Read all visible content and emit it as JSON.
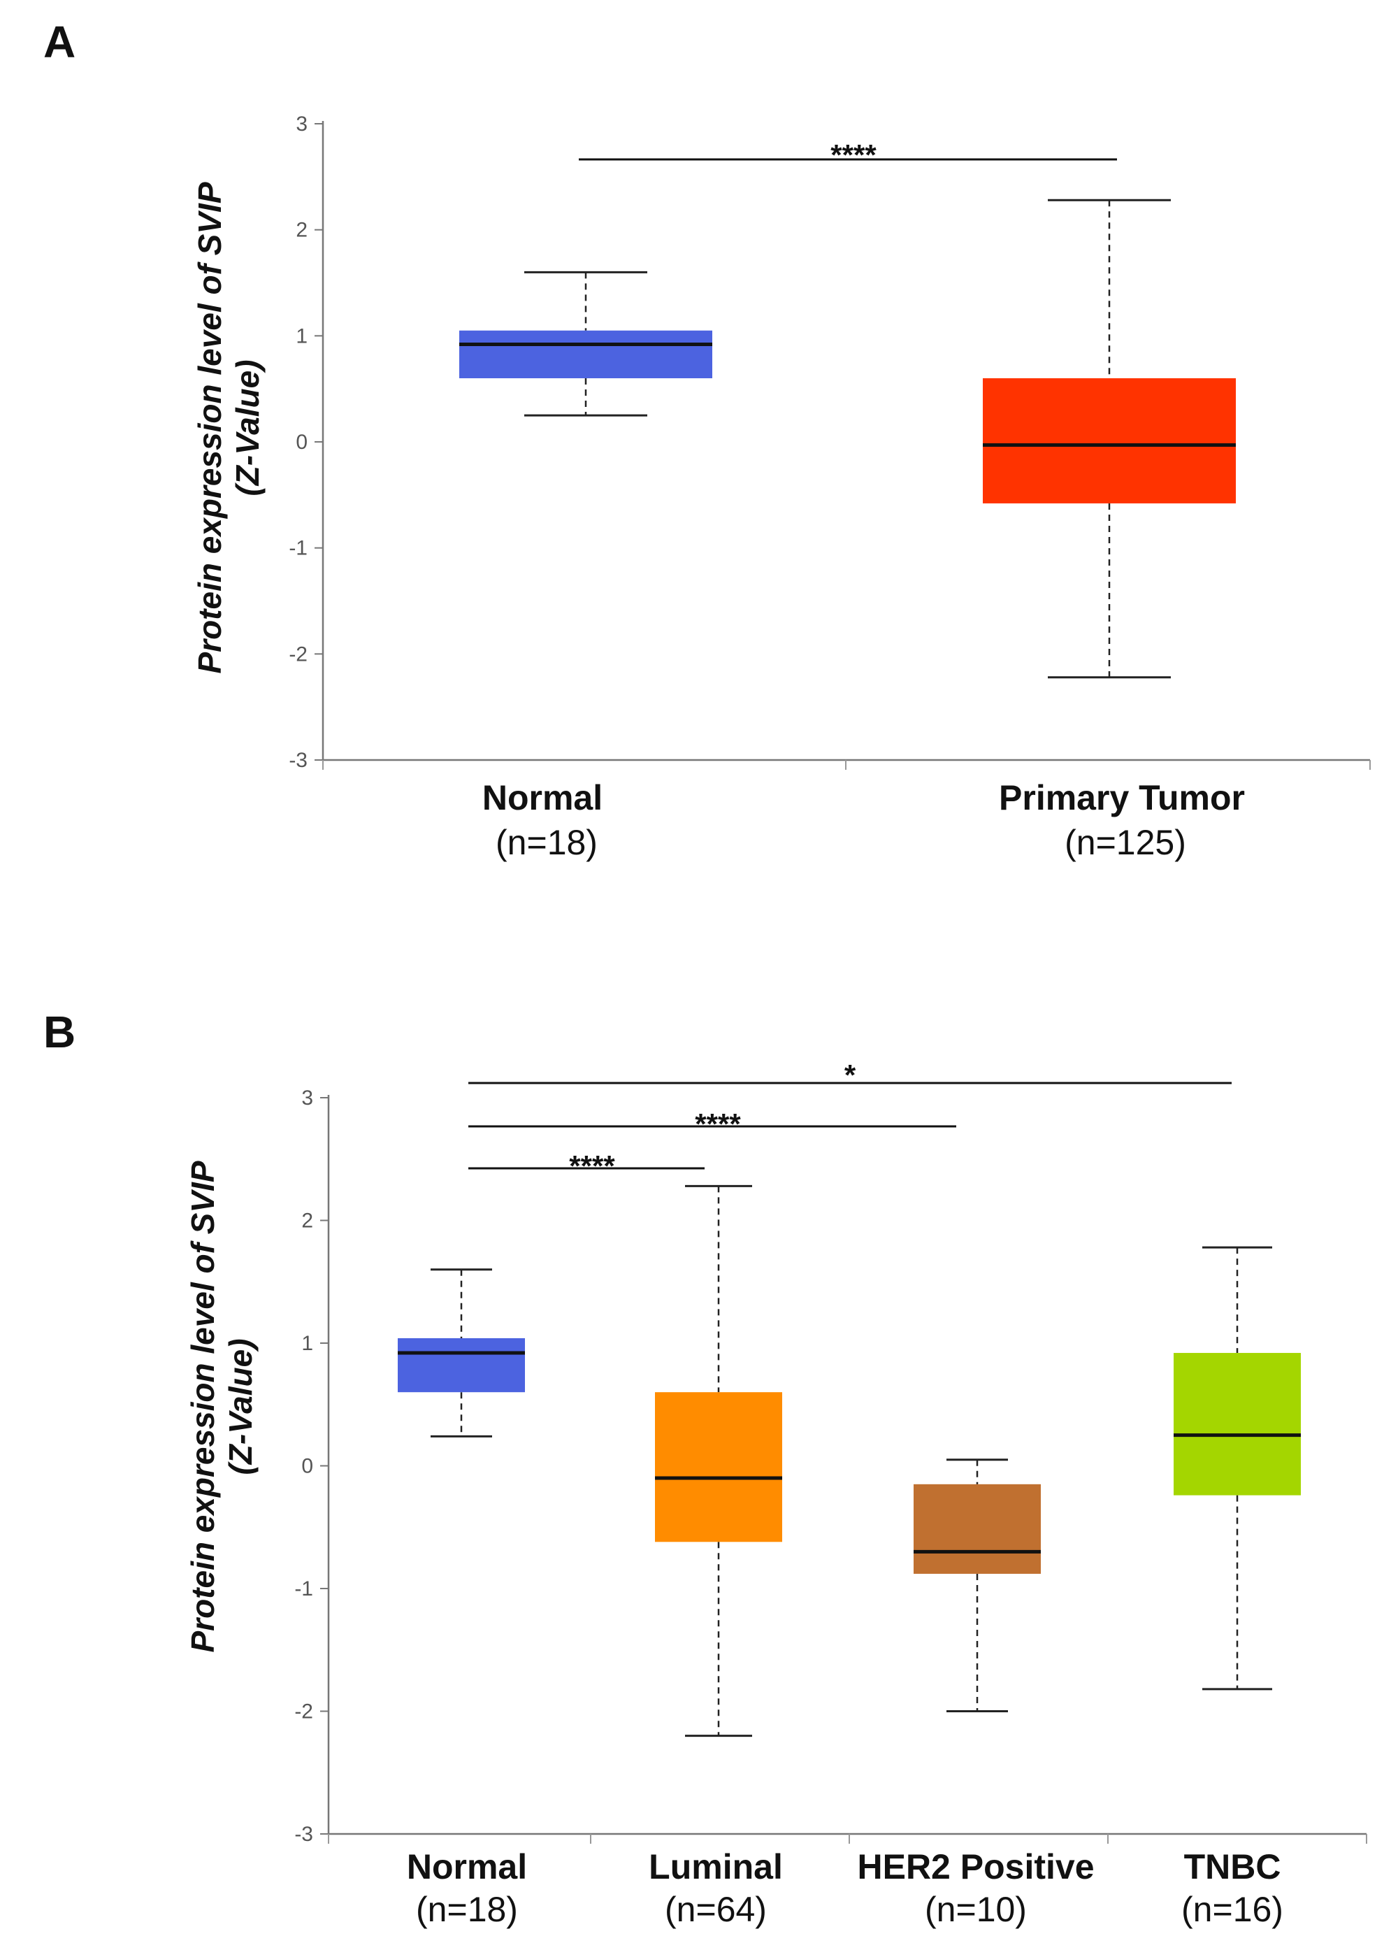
{
  "chart_data": [
    {
      "id": "A",
      "type": "box",
      "panel_label": "A",
      "ylabel_line1": "Protein expression level of SVIP",
      "ylabel_line2": "(Z-Value)",
      "ylim": [
        -3,
        3
      ],
      "yticks": [
        "3",
        "2",
        "1",
        "0",
        "-1",
        "-2",
        "-3"
      ],
      "ytick_values": [
        3,
        2,
        1,
        0,
        -1,
        -2,
        -3
      ],
      "groups": [
        {
          "name": "Normal",
          "n_label": "(n=18)",
          "color": "#4C63E0",
          "whisker_low": 0.25,
          "q1": 0.6,
          "median": 0.92,
          "q3": 1.05,
          "whisker_high": 1.6
        },
        {
          "name": "Primary Tumor",
          "n_label": "(n=125)",
          "color": "#FF3300",
          "whisker_low": -2.22,
          "q1": -0.58,
          "median": -0.03,
          "q3": 0.6,
          "whisker_high": 2.28
        }
      ],
      "significance": [
        {
          "from": 0,
          "to": 1,
          "label": "****"
        }
      ]
    },
    {
      "id": "B",
      "type": "box",
      "panel_label": "B",
      "ylabel_line1": "Protein expression level of SVIP",
      "ylabel_line2": "(Z-Value)",
      "ylim": [
        -3,
        3
      ],
      "yticks": [
        "3",
        "2",
        "1",
        "0",
        "-1",
        "-2",
        "-3"
      ],
      "ytick_values": [
        3,
        2,
        1,
        0,
        -1,
        -2,
        -3
      ],
      "groups": [
        {
          "name": "Normal",
          "n_label": "(n=18)",
          "color": "#4C63E0",
          "whisker_low": 0.24,
          "q1": 0.6,
          "median": 0.92,
          "q3": 1.04,
          "whisker_high": 1.6
        },
        {
          "name": "Luminal",
          "n_label": "(n=64)",
          "color": "#FF8C00",
          "whisker_low": -2.2,
          "q1": -0.62,
          "median": -0.1,
          "q3": 0.6,
          "whisker_high": 2.28
        },
        {
          "name": "HER2 Positive",
          "n_label": "(n=10)",
          "color": "#C07030",
          "whisker_low": -2.0,
          "q1": -0.88,
          "median": -0.7,
          "q3": -0.15,
          "whisker_high": 0.05
        },
        {
          "name": "TNBC",
          "n_label": "(n=16)",
          "color": "#A4D600",
          "whisker_low": -1.82,
          "q1": -0.24,
          "median": 0.25,
          "q3": 0.92,
          "whisker_high": 1.78
        }
      ],
      "significance": [
        {
          "from": 0,
          "to": 1,
          "label": "****"
        },
        {
          "from": 0,
          "to": 2,
          "label": "****"
        },
        {
          "from": 0,
          "to": 3,
          "label": "*"
        }
      ]
    }
  ]
}
